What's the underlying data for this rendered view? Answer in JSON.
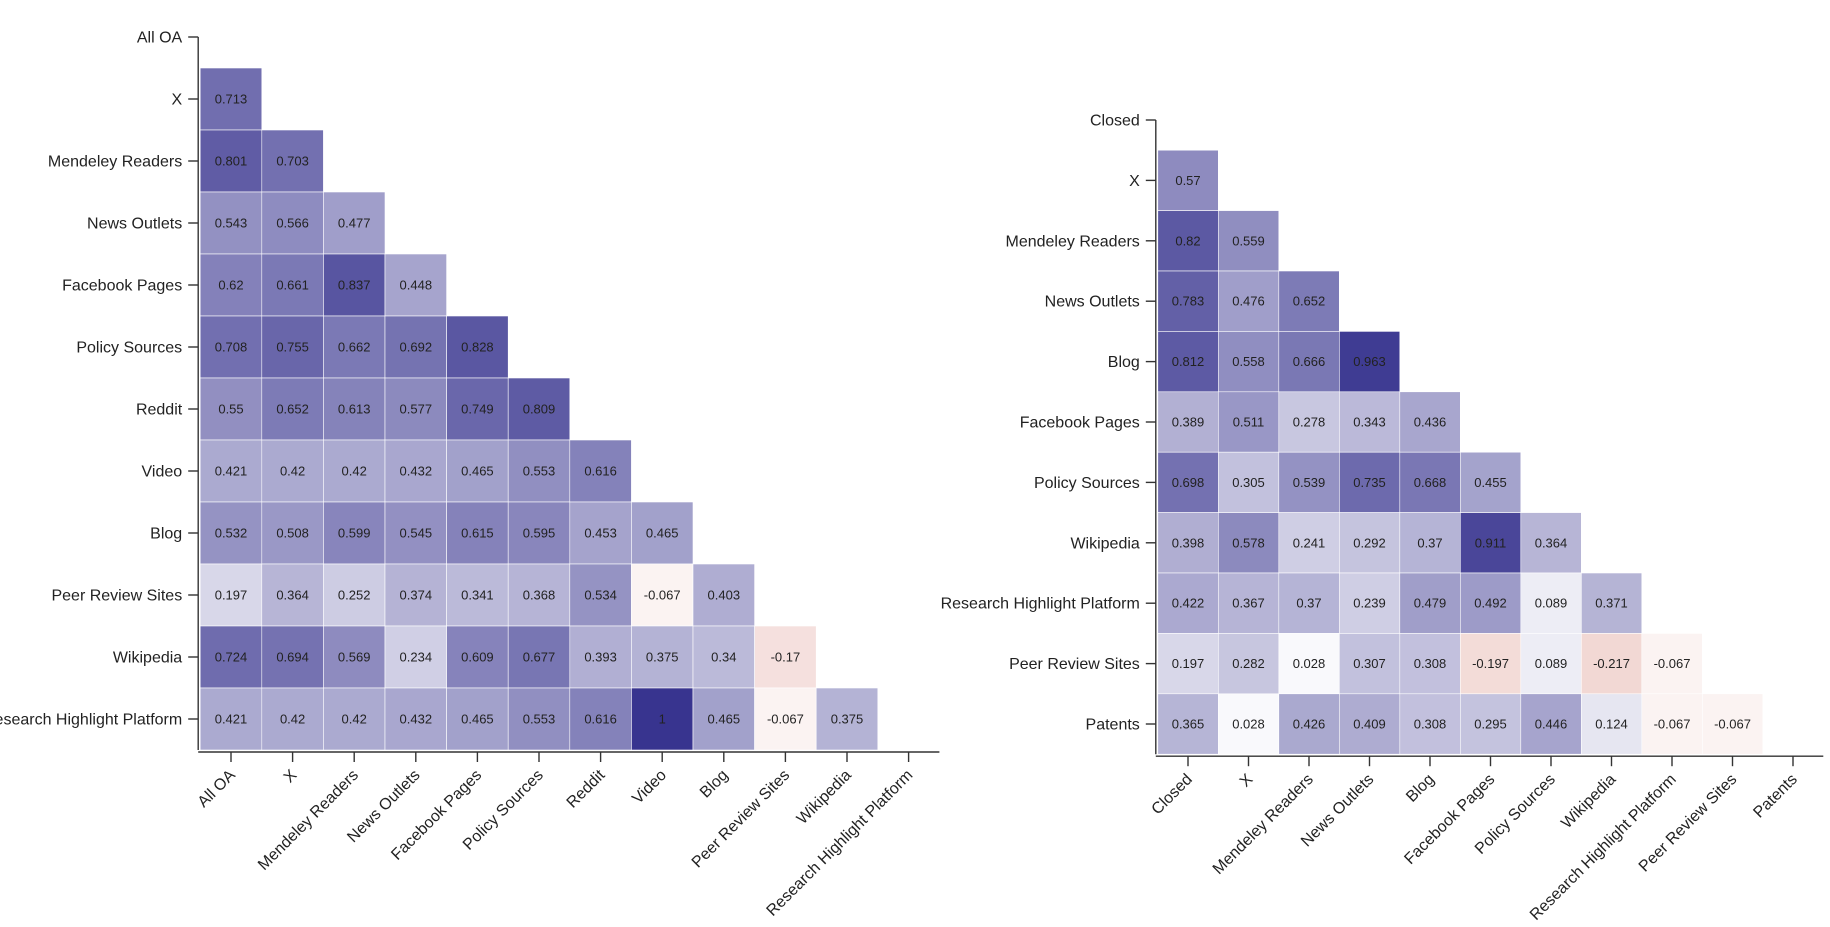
{
  "chart_data": [
    {
      "type": "heatmap",
      "title": "",
      "xlabel": "",
      "ylabel": "",
      "color_scale": {
        "negative": "#c24b3a",
        "zero": "#ffffff",
        "positive": "#38348f"
      },
      "labels": [
        "All OA",
        "X",
        "Mendeley Readers",
        "News Outlets",
        "Facebook Pages",
        "Policy Sources",
        "Reddit",
        "Video",
        "Blog",
        "Peer Review Sites",
        "Wikipedia",
        "Research Highlight Platform"
      ],
      "cells": [
        [],
        [
          "0.713"
        ],
        [
          "0.801",
          "0.703"
        ],
        [
          "0.543",
          "0.566",
          "0.477"
        ],
        [
          "0.62",
          "0.661",
          "0.837",
          "0.448"
        ],
        [
          "0.708",
          "0.755",
          "0.662",
          "0.692",
          "0.828"
        ],
        [
          "0.55",
          "0.652",
          "0.613",
          "0.577",
          "0.749",
          "0.809"
        ],
        [
          "0.421",
          "0.42",
          "0.42",
          "0.432",
          "0.465",
          "0.553",
          "0.616"
        ],
        [
          "0.532",
          "0.508",
          "0.599",
          "0.545",
          "0.615",
          "0.595",
          "0.453",
          "0.465"
        ],
        [
          "0.197",
          "0.364",
          "0.252",
          "0.374",
          "0.341",
          "0.368",
          "0.534",
          "-0.067",
          "0.403"
        ],
        [
          "0.724",
          "0.694",
          "0.569",
          "0.234",
          "0.609",
          "0.677",
          "0.393",
          "0.375",
          "0.34",
          "-0.17"
        ],
        [
          "0.421",
          "0.42",
          "0.42",
          "0.432",
          "0.465",
          "0.553",
          "0.616",
          "1",
          "0.465",
          "-0.067",
          "0.375"
        ]
      ]
    },
    {
      "type": "heatmap",
      "title": "",
      "xlabel": "",
      "ylabel": "",
      "color_scale": {
        "negative": "#c24b3a",
        "zero": "#ffffff",
        "positive": "#38348f"
      },
      "labels": [
        "Closed",
        "X",
        "Mendeley Readers",
        "News Outlets",
        "Blog",
        "Facebook Pages",
        "Policy Sources",
        "Wikipedia",
        "Research Highlight Platform",
        "Peer Review Sites",
        "Patents"
      ],
      "cells": [
        [],
        [
          "0.57"
        ],
        [
          "0.82",
          "0.559"
        ],
        [
          "0.783",
          "0.476",
          "0.652"
        ],
        [
          "0.812",
          "0.558",
          "0.666",
          "0.963"
        ],
        [
          "0.389",
          "0.511",
          "0.278",
          "0.343",
          "0.436"
        ],
        [
          "0.698",
          "0.305",
          "0.539",
          "0.735",
          "0.668",
          "0.455"
        ],
        [
          "0.398",
          "0.578",
          "0.241",
          "0.292",
          "0.37",
          "0.911",
          "0.364"
        ],
        [
          "0.422",
          "0.367",
          "0.37",
          "0.239",
          "0.479",
          "0.492",
          "0.089",
          "0.371"
        ],
        [
          "0.197",
          "0.282",
          "0.028",
          "0.307",
          "0.308",
          "-0.197",
          "0.089",
          "-0.217",
          "-0.067"
        ],
        [
          "0.365",
          "0.028",
          "0.426",
          "0.409",
          "0.308",
          "0.295",
          "0.446",
          "0.124",
          "-0.067",
          "-0.067"
        ]
      ]
    }
  ]
}
